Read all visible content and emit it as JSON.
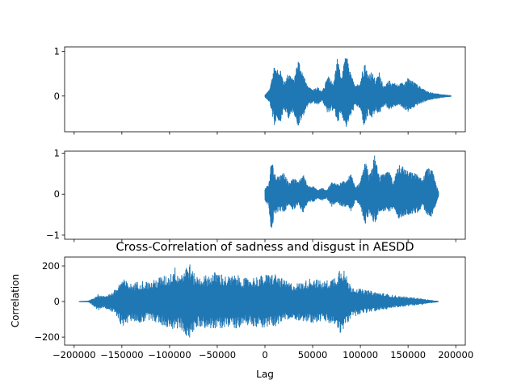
{
  "chart_data": [
    {
      "type": "line",
      "title": "",
      "xlabel": "",
      "ylabel": "",
      "xlim": [
        -210000,
        210000
      ],
      "ylim": [
        -0.8,
        1.1
      ],
      "x_ticks": [
        -200000,
        -150000,
        -100000,
        -50000,
        0,
        50000,
        100000,
        150000,
        200000
      ],
      "y_ticks": [
        1,
        0
      ],
      "y_tick_labels": [
        "1",
        "0"
      ],
      "x_tick_labels_visible": false,
      "color": "#1f77b4",
      "signal_range": [
        0,
        195000
      ],
      "envelope": {
        "x": [
          0,
          5000,
          10000,
          12000,
          16000,
          20000,
          25000,
          30000,
          35000,
          40000,
          45000,
          50000,
          55000,
          60000,
          66000,
          72000,
          76000,
          80000,
          85000,
          90000,
          95000,
          100000,
          104000,
          108000,
          112000,
          116000,
          120000,
          125000,
          130000,
          140000,
          150000,
          160000,
          170000,
          180000,
          190000,
          195000
        ],
        "upper": [
          0.02,
          0.15,
          0.75,
          0.55,
          0.65,
          0.3,
          0.55,
          0.35,
          0.85,
          0.5,
          0.2,
          0.15,
          0.2,
          0.1,
          0.45,
          0.3,
          0.9,
          0.4,
          0.95,
          0.5,
          0.2,
          0.35,
          0.8,
          0.5,
          0.55,
          0.35,
          0.55,
          0.2,
          0.35,
          0.25,
          0.4,
          0.25,
          0.1,
          0.05,
          0.02,
          0.01
        ],
        "lower": [
          -0.02,
          -0.15,
          -0.7,
          -0.5,
          -0.6,
          -0.3,
          -0.5,
          -0.35,
          -0.7,
          -0.45,
          -0.2,
          -0.15,
          -0.2,
          -0.1,
          -0.4,
          -0.3,
          -0.6,
          -0.4,
          -0.7,
          -0.45,
          -0.2,
          -0.3,
          -0.7,
          -0.45,
          -0.5,
          -0.35,
          -0.4,
          -0.2,
          -0.3,
          -0.2,
          -0.35,
          -0.2,
          -0.1,
          -0.05,
          -0.02,
          -0.01
        ]
      }
    },
    {
      "type": "line",
      "title": "",
      "xlabel": "",
      "ylabel": "",
      "xlim": [
        -210000,
        210000
      ],
      "ylim": [
        -1.1,
        1.05
      ],
      "x_ticks": [
        -200000,
        -150000,
        -100000,
        -50000,
        0,
        50000,
        100000,
        150000,
        200000
      ],
      "y_ticks": [
        1,
        0,
        -1
      ],
      "y_tick_labels": [
        "1",
        "0",
        "−1"
      ],
      "x_tick_labels_visible": false,
      "color": "#1f77b4",
      "signal_range": [
        0,
        182000
      ],
      "envelope": {
        "x": [
          0,
          4000,
          7000,
          10000,
          15000,
          20000,
          25000,
          30000,
          35000,
          40000,
          45000,
          50000,
          55000,
          60000,
          65000,
          70000,
          75000,
          80000,
          85000,
          90000,
          95000,
          100000,
          105000,
          110000,
          115000,
          120000,
          130000,
          135000,
          140000,
          150000,
          160000,
          165000,
          170000,
          175000,
          182000
        ],
        "upper": [
          0.15,
          0.25,
          0.9,
          0.5,
          0.45,
          0.55,
          0.25,
          0.4,
          0.3,
          0.5,
          0.2,
          0.2,
          0.1,
          0.15,
          0.1,
          0.3,
          0.25,
          0.35,
          0.3,
          0.5,
          0.15,
          0.3,
          0.8,
          0.5,
          0.95,
          0.45,
          0.55,
          0.3,
          0.8,
          0.55,
          0.5,
          0.35,
          0.65,
          0.6,
          0.05
        ],
        "lower": [
          -0.15,
          -0.3,
          -1.0,
          -0.5,
          -0.4,
          -0.45,
          -0.25,
          -0.4,
          -0.25,
          -0.45,
          -0.2,
          -0.2,
          -0.1,
          -0.15,
          -0.1,
          -0.3,
          -0.2,
          -0.3,
          -0.3,
          -0.45,
          -0.15,
          -0.3,
          -0.75,
          -0.45,
          -0.75,
          -0.4,
          -0.45,
          -0.3,
          -0.6,
          -0.5,
          -0.45,
          -0.3,
          -0.5,
          -0.55,
          -0.05
        ]
      }
    },
    {
      "type": "line",
      "title": "Cross-Correlation of sadness and disgust in AESDD",
      "xlabel": "Lag",
      "ylabel": "Correlation",
      "xlim": [
        -210000,
        210000
      ],
      "ylim": [
        -245,
        250
      ],
      "x_ticks": [
        -200000,
        -150000,
        -100000,
        -50000,
        0,
        50000,
        100000,
        150000,
        200000
      ],
      "x_tick_labels": [
        "−200000",
        "−150000",
        "−100000",
        "−50000",
        "0",
        "50000",
        "100000",
        "150000",
        "200000"
      ],
      "y_ticks": [
        200,
        0,
        -200
      ],
      "y_tick_labels": [
        "200",
        "0",
        "−200"
      ],
      "x_tick_labels_visible": true,
      "color": "#1f77b4",
      "signal_range": [
        -195000,
        182000
      ],
      "envelope": {
        "x": [
          -195000,
          -185000,
          -180000,
          -175000,
          -170000,
          -160000,
          -155000,
          -150000,
          -140000,
          -130000,
          -120000,
          -110000,
          -100000,
          -95000,
          -90000,
          -85000,
          -80000,
          -75000,
          -70000,
          -60000,
          -50000,
          -40000,
          -30000,
          -20000,
          -10000,
          0,
          10000,
          20000,
          30000,
          40000,
          50000,
          60000,
          70000,
          75000,
          80000,
          85000,
          90000,
          100000,
          110000,
          120000,
          130000,
          140000,
          150000,
          160000,
          170000,
          182000
        ],
        "upper": [
          1,
          3,
          20,
          40,
          30,
          50,
          80,
          130,
          100,
          120,
          110,
          140,
          150,
          200,
          160,
          180,
          230,
          160,
          140,
          150,
          170,
          140,
          150,
          130,
          140,
          150,
          160,
          120,
          100,
          110,
          140,
          110,
          130,
          150,
          220,
          150,
          90,
          70,
          60,
          50,
          40,
          30,
          25,
          20,
          10,
          1
        ],
        "lower": [
          -1,
          -3,
          -25,
          -50,
          -30,
          -60,
          -90,
          -140,
          -110,
          -120,
          -100,
          -130,
          -150,
          -160,
          -150,
          -170,
          -230,
          -170,
          -140,
          -150,
          -160,
          -140,
          -150,
          -130,
          -140,
          -150,
          -140,
          -110,
          -100,
          -110,
          -120,
          -110,
          -130,
          -140,
          -190,
          -140,
          -90,
          -70,
          -60,
          -50,
          -40,
          -30,
          -25,
          -20,
          -10,
          -1
        ]
      }
    }
  ]
}
